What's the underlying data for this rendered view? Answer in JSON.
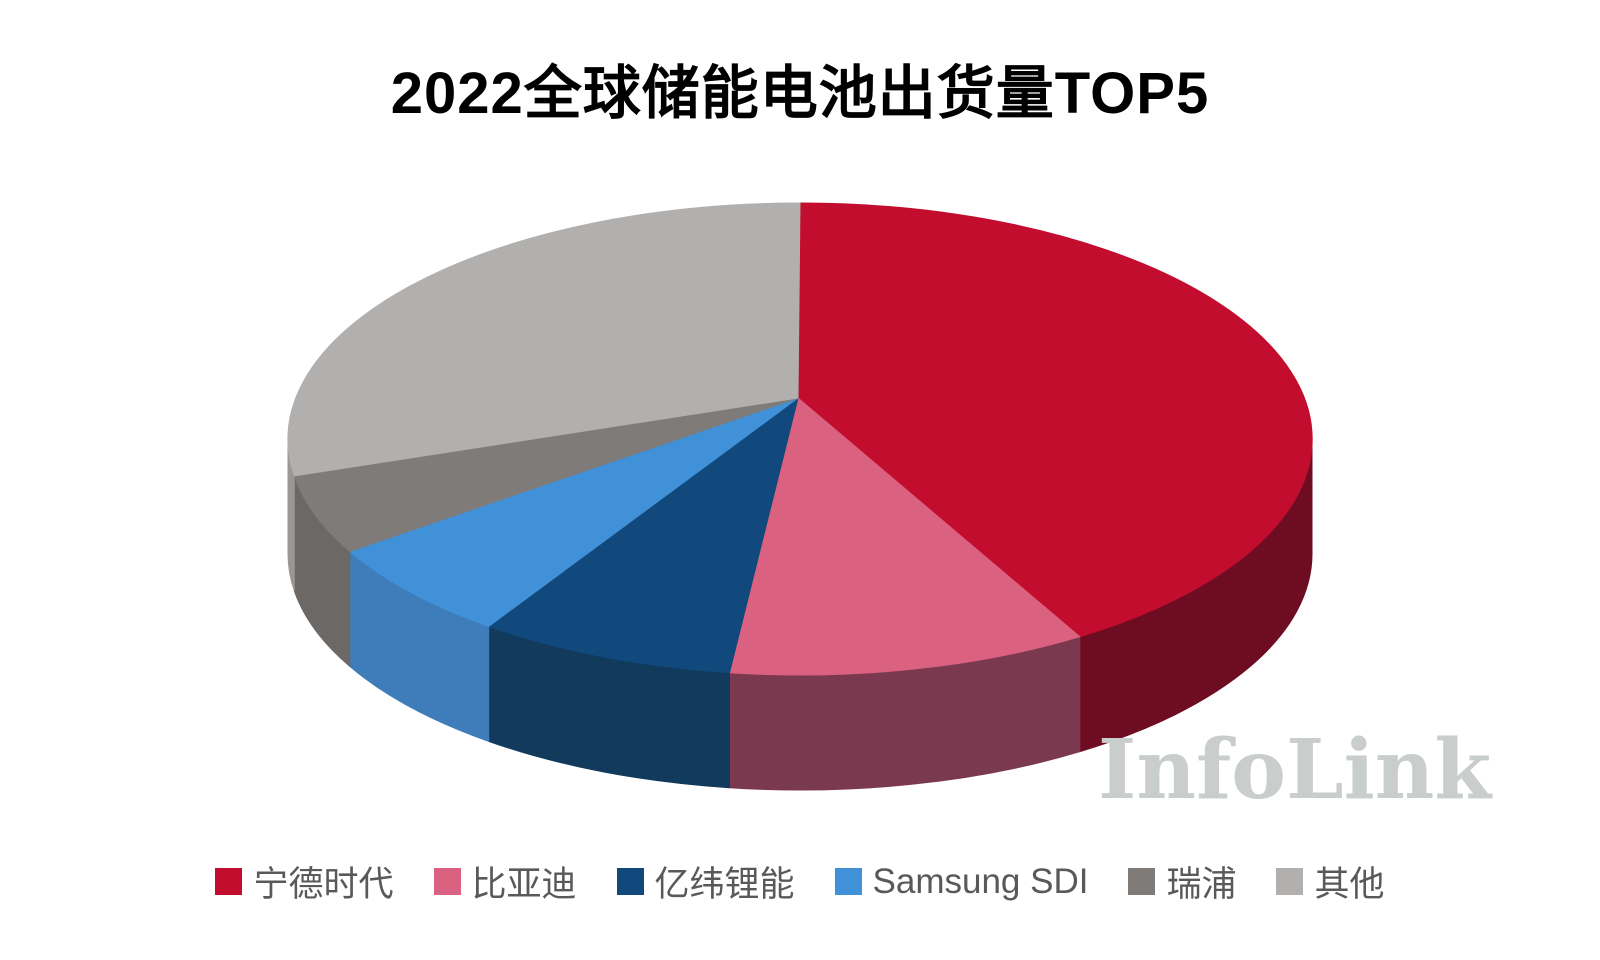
{
  "title": "2022全球储能电池出货量TOP5",
  "watermark": "InfoLink",
  "chart_data": {
    "type": "pie",
    "style": "3d-perspective",
    "title": "2022全球储能电池出货量TOP5",
    "categories": [
      "宁德时代",
      "比亚迪",
      "亿纬锂能",
      "Samsung SDI",
      "瑞浦",
      "其他"
    ],
    "values": [
      40.8,
      11.4,
      8.2,
      6.7,
      5.4,
      27.5
    ],
    "values_unit": "percent, estimated from slice angles (no data labels shown)",
    "start_angle_deg": 0,
    "direction": "clockwise",
    "colors_top": [
      "#C20D2E",
      "#DA617F",
      "#11497D",
      "#4191D9",
      "#7E7B79",
      "#B1B0AF"
    ],
    "colors_side": [
      "#6E0C22",
      "#7B3950",
      "#113A5C",
      "#3E7DBA",
      "#6B6866",
      "#9A9896"
    ],
    "legend_position": "bottom",
    "data_labels": false,
    "background": "#FFFFFF"
  },
  "legend": {
    "items": [
      {
        "label": "宁德时代",
        "color": "#C20D2E"
      },
      {
        "label": "比亚迪",
        "color": "#DA617F"
      },
      {
        "label": "亿纬锂能",
        "color": "#11497D"
      },
      {
        "label": "Samsung SDI",
        "color": "#4191D9"
      },
      {
        "label": "瑞浦",
        "color": "#7E7B79"
      },
      {
        "label": "其他",
        "color": "#B1B0AF"
      }
    ]
  }
}
